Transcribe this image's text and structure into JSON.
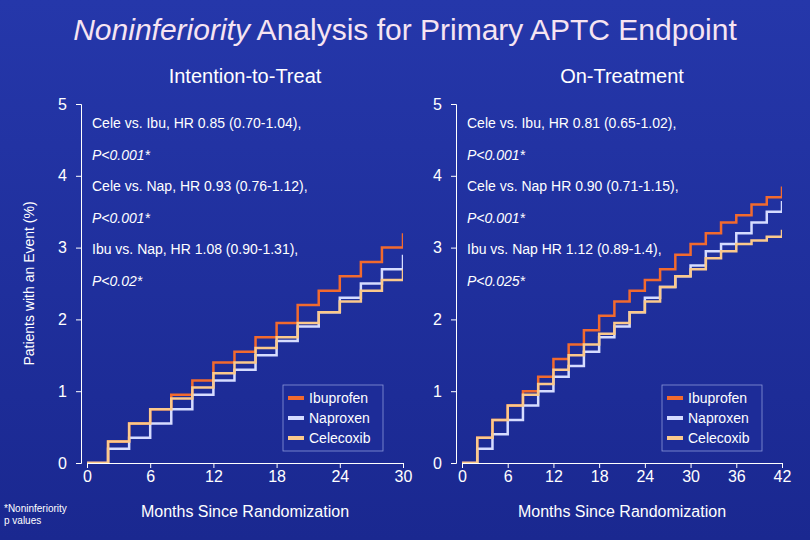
{
  "title": "Noninferiority Analysis for Primary APTC Endpoint",
  "footnote": [
    "*Noninferiority",
    "p values"
  ],
  "chart_data": [
    {
      "type": "line",
      "title": "Intention-to-Treat",
      "x_label": "Months Since Randomization",
      "y_label": "Patients with an Event (%)",
      "x": [
        0,
        2,
        4,
        6,
        8,
        10,
        12,
        14,
        16,
        18,
        20,
        22,
        24,
        26,
        28,
        30
      ],
      "series": [
        {
          "name": "Ibuprofen",
          "color": "#f26a2e",
          "line_style": "step",
          "values": [
            0,
            0.3,
            0.55,
            0.75,
            0.95,
            1.15,
            1.4,
            1.55,
            1.75,
            1.95,
            2.2,
            2.4,
            2.6,
            2.8,
            3.0,
            3.2
          ]
        },
        {
          "name": "Naproxen",
          "color": "#d6dcff",
          "line_style": "step",
          "values": [
            0,
            0.2,
            0.35,
            0.55,
            0.75,
            0.95,
            1.15,
            1.3,
            1.5,
            1.7,
            1.9,
            2.1,
            2.3,
            2.5,
            2.7,
            2.9
          ]
        },
        {
          "name": "Celecoxib",
          "color": "#fbc98c",
          "line_style": "step",
          "values": [
            0,
            0.3,
            0.55,
            0.75,
            0.9,
            1.05,
            1.25,
            1.4,
            1.6,
            1.75,
            1.95,
            2.1,
            2.25,
            2.4,
            2.55,
            2.7
          ]
        }
      ],
      "xlim": [
        0,
        30
      ],
      "xticks": [
        0,
        6,
        12,
        18,
        24,
        30
      ],
      "ylim": [
        0,
        5
      ],
      "yticks": [
        0,
        1,
        2,
        3,
        4,
        5
      ],
      "annotations": [
        "Cele vs. Ibu, HR 0.85 (0.70-1.04),",
        "P<0.001*",
        "Cele vs. Nap, HR 0.93 (0.76-1.12),",
        "P<0.001*",
        "Ibu vs. Nap, HR 1.08 (0.90-1.31),",
        "P<0.02*"
      ],
      "legend": "lower right",
      "grid": false
    },
    {
      "type": "line",
      "title": "On-Treatment",
      "x_label": "Months Since Randomization",
      "x": [
        0,
        2,
        4,
        6,
        8,
        10,
        12,
        14,
        16,
        18,
        20,
        22,
        24,
        26,
        28,
        30,
        32,
        34,
        36,
        38,
        40,
        42
      ],
      "series": [
        {
          "name": "Ibuprofen",
          "color": "#f26a2e",
          "line_style": "step",
          "values": [
            0,
            0.35,
            0.6,
            0.8,
            1.0,
            1.2,
            1.45,
            1.65,
            1.85,
            2.05,
            2.25,
            2.4,
            2.55,
            2.7,
            2.9,
            3.05,
            3.2,
            3.35,
            3.45,
            3.6,
            3.7,
            3.85
          ]
        },
        {
          "name": "Naproxen",
          "color": "#d6dcff",
          "line_style": "step",
          "values": [
            0,
            0.2,
            0.4,
            0.6,
            0.8,
            1.0,
            1.2,
            1.35,
            1.55,
            1.75,
            1.9,
            2.1,
            2.3,
            2.45,
            2.6,
            2.75,
            2.95,
            3.05,
            3.2,
            3.35,
            3.5,
            3.65
          ]
        },
        {
          "name": "Celecoxib",
          "color": "#fbc98c",
          "line_style": "step",
          "values": [
            0,
            0.35,
            0.6,
            0.8,
            0.95,
            1.1,
            1.3,
            1.5,
            1.65,
            1.8,
            1.95,
            2.1,
            2.25,
            2.45,
            2.6,
            2.7,
            2.85,
            2.95,
            3.05,
            3.1,
            3.15,
            3.25
          ]
        }
      ],
      "xlim": [
        0,
        42
      ],
      "xticks": [
        0,
        6,
        12,
        18,
        24,
        30,
        36,
        42
      ],
      "ylim": [
        0,
        5
      ],
      "yticks": [
        0,
        1,
        2,
        3,
        4,
        5
      ],
      "annotations": [
        "Cele vs. Ibu, HR 0.81 (0.65-1.02),",
        "P<0.001*",
        "Cele vs. Nap HR 0.90 (0.71-1.15),",
        "P<0.001*",
        "Ibu vs. Nap HR 1.12 (0.89-1.4),",
        "P<0.025*"
      ],
      "legend": "lower right",
      "grid": false
    }
  ]
}
